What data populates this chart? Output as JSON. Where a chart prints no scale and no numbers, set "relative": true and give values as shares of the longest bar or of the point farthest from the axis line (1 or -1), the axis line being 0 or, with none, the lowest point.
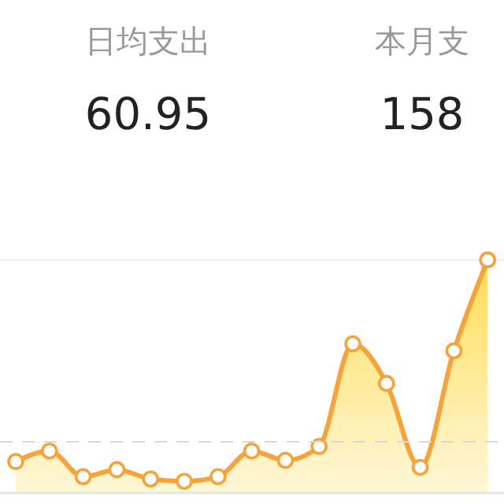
{
  "chart_data": {
    "type": "area",
    "relative": true,
    "categories": [
      null,
      null,
      null,
      null,
      null,
      null,
      null,
      null,
      null,
      null,
      null,
      null,
      null,
      null,
      null
    ],
    "series": [
      {
        "color": "#f5a33a",
        "values": [
          0.135,
          0.18,
          0.07,
          0.1,
          0.06,
          0.05,
          0.07,
          0.18,
          0.14,
          0.2,
          0.64,
          0.47,
          0.11,
          0.61,
          1
        ]
      }
    ],
    "marker": "circle",
    "ref_lines": [
      {
        "axis": "y",
        "value": 0.22,
        "color": "#d9d9d9",
        "line_style": "dashed"
      }
    ],
    "annotations": [
      "日均支出",
      "60.95",
      "本月支",
      "158"
    ]
  }
}
